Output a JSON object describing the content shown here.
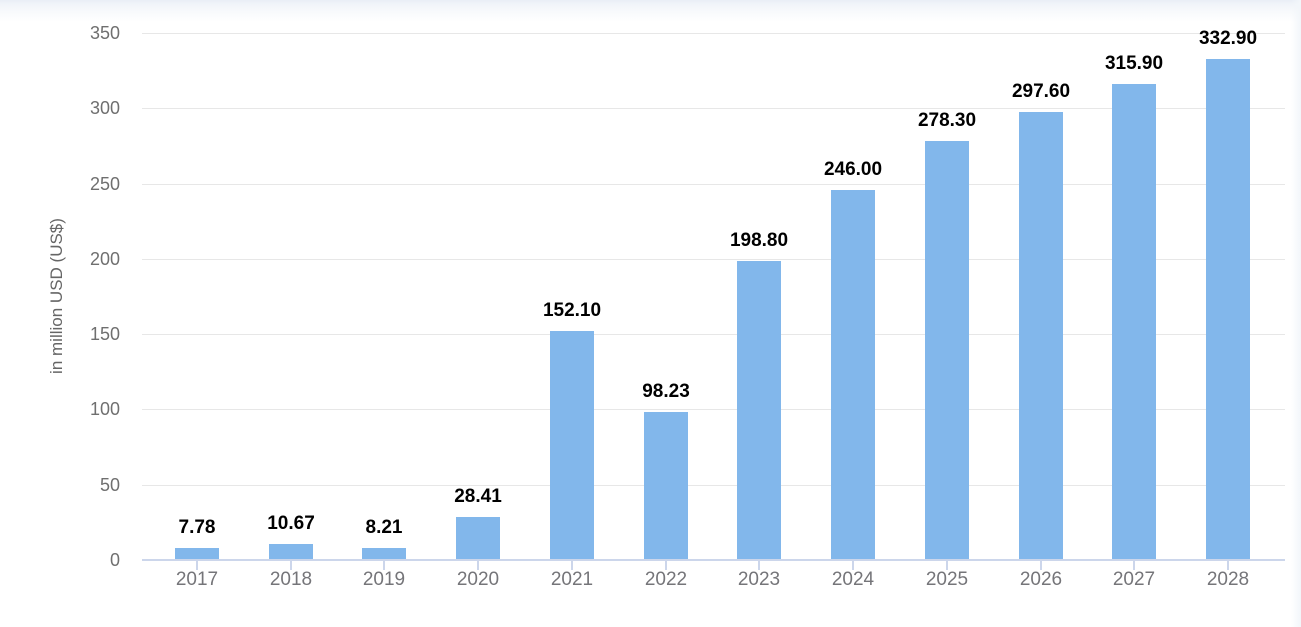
{
  "chart_data": {
    "type": "bar",
    "title": "",
    "xlabel": "",
    "ylabel": "in million USD (US$)",
    "categories": [
      "2017",
      "2018",
      "2019",
      "2020",
      "2021",
      "2022",
      "2023",
      "2024",
      "2025",
      "2026",
      "2027",
      "2028"
    ],
    "values": [
      7.78,
      10.67,
      8.21,
      28.41,
      152.1,
      98.23,
      198.8,
      246.0,
      278.3,
      297.6,
      315.9,
      332.9
    ],
    "value_labels": [
      "7.78",
      "10.67",
      "8.21",
      "28.41",
      "152.10",
      "98.23",
      "198.80",
      "246.00",
      "278.30",
      "297.60",
      "315.90",
      "332.90"
    ],
    "ylim": [
      0,
      350
    ],
    "y_ticks": [
      0,
      50,
      100,
      150,
      200,
      250,
      300,
      350
    ],
    "grid": true,
    "legend": "none",
    "colors": {
      "bar": "#82b7eb",
      "gridline": "#e7e7e7",
      "axis_line": "#ccd6eb",
      "x_tick_label": "#757579",
      "y_tick_label": "#6f6f6f",
      "value_label": "#000000",
      "y_axis_title": "#666666",
      "page_edge": "#e9eef6",
      "background": "#ffffff"
    }
  }
}
